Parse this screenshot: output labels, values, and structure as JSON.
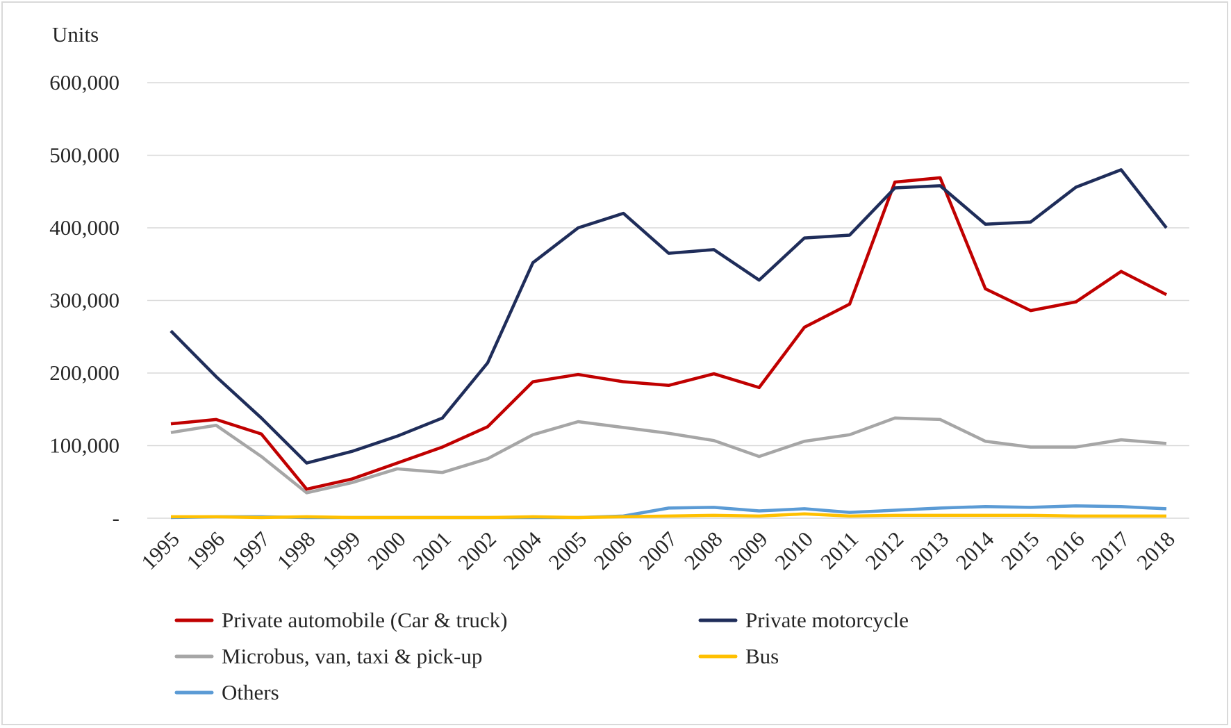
{
  "chart_data": {
    "type": "line",
    "title": "",
    "ylabel": "Units",
    "xlabel": "",
    "ylim": [
      0,
      600000
    ],
    "yticks": [
      0,
      100000,
      200000,
      300000,
      400000,
      500000,
      600000
    ],
    "ytick_labels": [
      "-",
      "100,000",
      "200,000",
      "300,000",
      "400,000",
      "500,000",
      "600,000"
    ],
    "grid": true,
    "legend_position": "bottom",
    "categories": [
      "1995",
      "1996",
      "1997",
      "1998",
      "1999",
      "2000",
      "2001",
      "2002",
      "2004",
      "2005",
      "2006",
      "2007",
      "2008",
      "2009",
      "2010",
      "2011",
      "2012",
      "2013",
      "2014",
      "2015",
      "2016",
      "2017",
      "2018"
    ],
    "series": [
      {
        "name": "Private automobile (Car & truck)",
        "color": "#c00000",
        "values": [
          130000,
          136000,
          116000,
          40000,
          54000,
          76000,
          98000,
          126000,
          188000,
          198000,
          188000,
          183000,
          199000,
          180000,
          263000,
          295000,
          463000,
          469000,
          316000,
          286000,
          298000,
          340000,
          308000
        ]
      },
      {
        "name": "Private motorcycle",
        "color": "#1f2d5a",
        "values": [
          258000,
          195000,
          138000,
          76000,
          92000,
          113000,
          138000,
          214000,
          352000,
          400000,
          420000,
          365000,
          370000,
          328000,
          386000,
          390000,
          455000,
          458000,
          405000,
          408000,
          456000,
          480000,
          400000
        ]
      },
      {
        "name": "Microbus, van, taxi & pick-up",
        "color": "#a6a6a6",
        "values": [
          118000,
          128000,
          85000,
          35000,
          49000,
          68000,
          63000,
          82000,
          115000,
          133000,
          125000,
          117000,
          107000,
          85000,
          106000,
          115000,
          138000,
          136000,
          106000,
          98000,
          98000,
          108000,
          103000
        ]
      },
      {
        "name": "Bus",
        "color": "#ffc000",
        "values": [
          2000,
          2000,
          1000,
          2000,
          1000,
          1000,
          1000,
          1000,
          2000,
          1000,
          2000,
          3000,
          4000,
          3000,
          6000,
          3000,
          4000,
          4000,
          4000,
          4000,
          3000,
          3000,
          3000
        ]
      },
      {
        "name": "Others",
        "color": "#5b9bd5",
        "values": [
          1000,
          2000,
          2000,
          1000,
          1000,
          1000,
          1000,
          1000,
          1000,
          1000,
          3000,
          14000,
          15000,
          10000,
          13000,
          8000,
          11000,
          14000,
          16000,
          15000,
          17000,
          16000,
          13000
        ]
      }
    ]
  }
}
